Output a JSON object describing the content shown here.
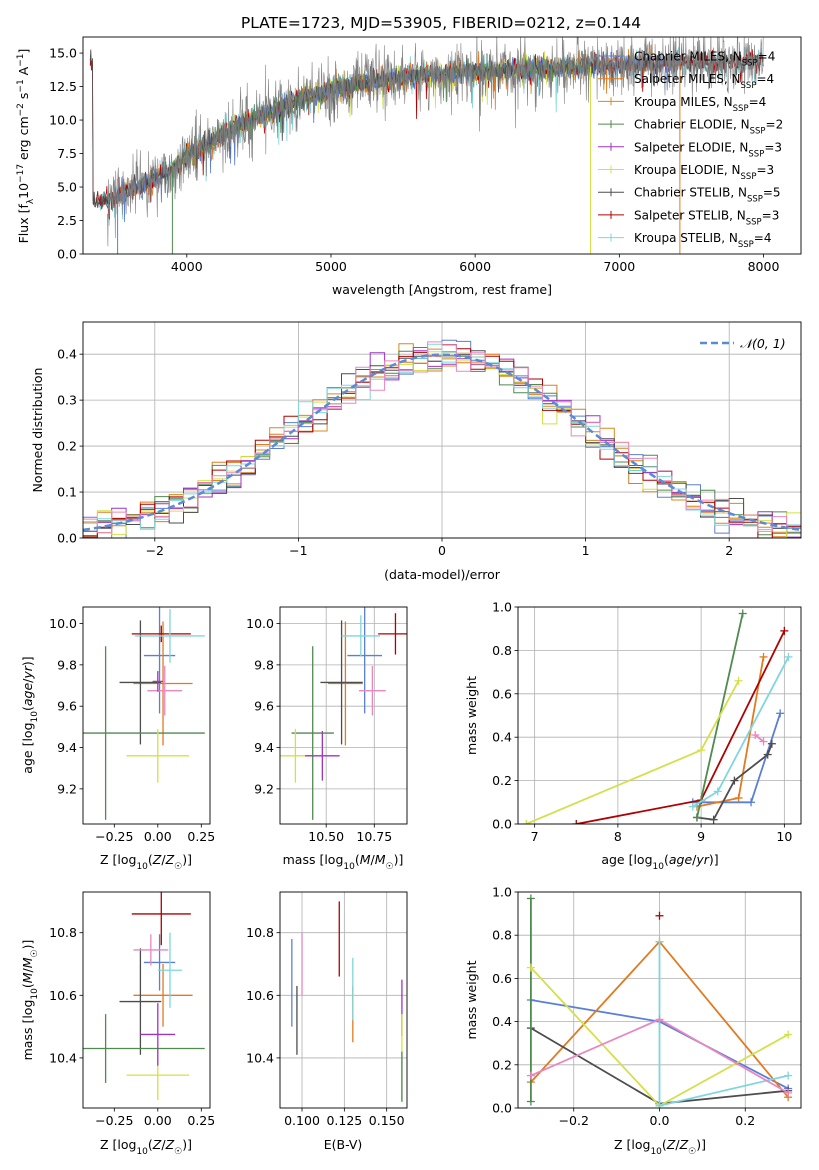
{
  "title": "PLATE=1723, MJD=53905, FIBERID=0212, z=0.144",
  "colors": {
    "Chabrier MILES": "#5b7fd6",
    "Salpeter MILES": "#e07b20",
    "Kroupa MILES": "#d88a1c",
    "Chabrier ELODIE": "#4f8a4f",
    "Salpeter ELODIE": "#a033c0",
    "Kroupa ELODIE": "#d4e04a",
    "Chabrier STELIB": "#4d4d4d",
    "Salpeter STELIB": "#b00000",
    "Kroupa STELIB": "#7fd6dc",
    "pink": "#e887c0",
    "data": "#808080"
  },
  "chart_data": [
    {
      "type": "line",
      "xlabel": "wavelength [Angstrom, rest frame]",
      "ylabel": "Flux [f$_\\lambda$10$^{-17}$ erg cm$^{-2}$ s$^{-1}$ A$^{-1}$]",
      "ylabel_parts": [
        "Flux [f",
        "λ",
        "10",
        "−17",
        " erg cm",
        "−2",
        " s",
        "−1",
        " A",
        "−1",
        "]"
      ],
      "xlim": [
        3280,
        8260
      ],
      "ylim": [
        0,
        16.2
      ],
      "xticks": [
        4000,
        5000,
        6000,
        7000,
        8000
      ],
      "yticks": [
        0.0,
        2.5,
        5.0,
        7.5,
        10.0,
        12.5,
        15.0
      ],
      "grid": false,
      "legend_position": "top-right",
      "legend": [
        {
          "label": "Chabrier MILES",
          "n": 4,
          "color": "#5b7fd6"
        },
        {
          "label": "Salpeter MILES",
          "n": 4,
          "color": "#e07b20"
        },
        {
          "label": "Kroupa MILES",
          "n": 4,
          "color": "#d88a1c"
        },
        {
          "label": "Chabrier ELODIE",
          "n": 2,
          "color": "#4f8a4f"
        },
        {
          "label": "Salpeter ELODIE",
          "n": 3,
          "color": "#a033c0"
        },
        {
          "label": "Kroupa ELODIE",
          "n": 3,
          "color": "#d4e04a"
        },
        {
          "label": "Chabrier STELIB",
          "n": 5,
          "color": "#4d4d4d"
        },
        {
          "label": "Salpeter STELIB",
          "n": 3,
          "color": "#b00000"
        },
        {
          "label": "Kroupa STELIB",
          "n": 4,
          "color": "#7fd6dc"
        }
      ],
      "n_label": "N",
      "n_sub": "SSP",
      "spectrum_envelope": {
        "x": [
          3350,
          3500,
          3700,
          3900,
          4000,
          4200,
          4500,
          4800,
          5000,
          5300,
          5600,
          6000,
          6400,
          6800,
          7200,
          7600,
          8000
        ],
        "y": [
          3.9,
          4.3,
          5.2,
          6.3,
          7.3,
          8.6,
          10.3,
          11.6,
          12.3,
          12.9,
          13.3,
          13.6,
          13.8,
          14.0,
          14.2,
          14.3,
          14.4
        ]
      }
    },
    {
      "type": "histogram",
      "xlabel": "(data-model)/error",
      "ylabel": "Normed distribution",
      "xlim": [
        -2.5,
        2.5
      ],
      "ylim": [
        0,
        0.47
      ],
      "xticks": [
        -2,
        -1,
        0,
        1,
        2
      ],
      "yticks": [
        0.0,
        0.1,
        0.2,
        0.3,
        0.4
      ],
      "grid": true,
      "legend": [
        {
          "label": "𝒩(0, 1)",
          "color": "#5b8ad6",
          "style": "dashed"
        }
      ],
      "legend_position": "top-right",
      "bin_width": 0.1,
      "series_colors": [
        "#5b7fd6",
        "#e07b20",
        "#d88a1c",
        "#4f8a4f",
        "#a033c0",
        "#d4e04a",
        "#4d4d4d",
        "#b00000",
        "#7fd6dc",
        "#e887c0"
      ]
    },
    {
      "type": "scatter",
      "panel": "age vs Z",
      "xlabel": "Z [log10(Z/Z☉)]",
      "ylabel": "age [log10(age/yr)]",
      "xlim": [
        -0.43,
        0.3
      ],
      "ylim": [
        9.03,
        10.08
      ],
      "xticks": [
        -0.25,
        0.0,
        0.25
      ],
      "yticks": [
        9.2,
        9.4,
        9.6,
        9.8,
        10.0
      ],
      "grid": false,
      "points": [
        {
          "x": 0.01,
          "y": 9.845,
          "xerr": 0.09,
          "yerr": 0.28,
          "color": "#5b7fd6"
        },
        {
          "x": 0.03,
          "y": 9.71,
          "xerr": 0.17,
          "yerr": 0.3,
          "color": "#e07b20"
        },
        {
          "x": 0.02,
          "y": 9.95,
          "xerr": 0.17,
          "yerr": 0.04,
          "color": "#b00000"
        },
        {
          "x": -0.1,
          "y": 9.715,
          "xerr": 0.12,
          "yerr": 0.3,
          "color": "#4d4d4d"
        },
        {
          "x": -0.3,
          "y": 9.47,
          "xerr": 0.57,
          "yerr": 0.42,
          "color": "#4f8a4f"
        },
        {
          "x": 0.0,
          "y": 9.36,
          "xerr": 0.18,
          "yerr": 0.13,
          "color": "#d4e04a"
        },
        {
          "x": 0.07,
          "y": 9.94,
          "xerr": 0.2,
          "yerr": 0.13,
          "color": "#7fd6dc"
        },
        {
          "x": 0.04,
          "y": 9.675,
          "xerr": 0.1,
          "yerr": 0.12,
          "color": "#e887c0"
        },
        {
          "x": 0.0,
          "y": 9.72,
          "xerr": 0.03,
          "yerr": 0.05,
          "color": "#a033c0"
        }
      ]
    },
    {
      "type": "scatter",
      "panel": "age vs mass",
      "xlabel": "mass [log10(M/M☉)]",
      "ylabel": "",
      "xlim": [
        10.26,
        10.92
      ],
      "ylim": [
        9.03,
        10.08
      ],
      "xticks": [
        10.25,
        10.5,
        10.75
      ],
      "yticks": [
        9.2,
        9.4,
        9.6,
        9.8,
        10.0
      ],
      "grid": true,
      "points": [
        {
          "x": 10.7,
          "y": 9.845,
          "xerr": 0.09,
          "yerr": 0.28,
          "color": "#5b7fd6"
        },
        {
          "x": 10.6,
          "y": 9.71,
          "xerr": 0.09,
          "yerr": 0.3,
          "color": "#e07b20"
        },
        {
          "x": 10.86,
          "y": 9.95,
          "xerr": 0.09,
          "yerr": 0.1,
          "color": "#b00000"
        },
        {
          "x": 10.58,
          "y": 9.715,
          "xerr": 0.11,
          "yerr": 0.3,
          "color": "#4d4d4d"
        },
        {
          "x": 10.43,
          "y": 9.47,
          "xerr": 0.11,
          "yerr": 0.42,
          "color": "#4f8a4f"
        },
        {
          "x": 10.34,
          "y": 9.36,
          "xerr": 0.09,
          "yerr": 0.13,
          "color": "#d4e04a"
        },
        {
          "x": 10.68,
          "y": 9.94,
          "xerr": 0.1,
          "yerr": 0.1,
          "color": "#7fd6dc"
        },
        {
          "x": 10.74,
          "y": 9.675,
          "xerr": 0.07,
          "yerr": 0.12,
          "color": "#e887c0"
        },
        {
          "x": 10.48,
          "y": 9.36,
          "xerr": 0.09,
          "yerr": 0.12,
          "color": "#a033c0"
        }
      ]
    },
    {
      "type": "line",
      "panel": "mass weight vs age",
      "xlabel": "age [log10(age/yr)]",
      "ylabel": "mass weight",
      "xlim": [
        6.8,
        10.2
      ],
      "ylim": [
        0,
        1.0
      ],
      "xticks": [
        7,
        8,
        9,
        10
      ],
      "yticks": [
        0.0,
        0.2,
        0.4,
        0.6,
        0.8,
        1.0
      ],
      "grid": true,
      "series": [
        {
          "color": "#5b7fd6",
          "points": [
            [
              8.9,
              0.1
            ],
            [
              9.6,
              0.1
            ],
            [
              9.95,
              0.51
            ]
          ]
        },
        {
          "color": "#e07b20",
          "points": [
            [
              8.95,
              0.08
            ],
            [
              9.45,
              0.12
            ],
            [
              9.75,
              0.77
            ]
          ]
        },
        {
          "color": "#b00000",
          "points": [
            [
              7.5,
              0.0
            ],
            [
              9.0,
              0.11
            ],
            [
              10.0,
              0.89
            ]
          ]
        },
        {
          "color": "#4d4d4d",
          "points": [
            [
              8.95,
              0.03
            ],
            [
              9.15,
              0.02
            ],
            [
              9.4,
              0.2
            ],
            [
              9.8,
              0.32
            ],
            [
              9.85,
              0.37
            ]
          ]
        },
        {
          "color": "#4f8a4f",
          "points": [
            [
              8.95,
              0.03
            ],
            [
              9.5,
              0.97
            ]
          ]
        },
        {
          "color": "#d4e04a",
          "points": [
            [
              6.9,
              0.0
            ],
            [
              9.0,
              0.34
            ],
            [
              9.45,
              0.66
            ]
          ]
        },
        {
          "color": "#7fd6dc",
          "points": [
            [
              8.9,
              0.08
            ],
            [
              9.2,
              0.15
            ],
            [
              10.05,
              0.77
            ]
          ]
        },
        {
          "color": "#e887c0",
          "points": [
            [
              9.65,
              0.41
            ],
            [
              9.75,
              0.38
            ]
          ]
        }
      ]
    },
    {
      "type": "scatter",
      "panel": "mass vs Z",
      "xlabel": "Z [log10(Z/Z☉)]",
      "ylabel": "mass [log10(M/M☉)]",
      "xlim": [
        -0.43,
        0.3
      ],
      "ylim": [
        10.24,
        10.93
      ],
      "xticks": [
        -0.25,
        0.0,
        0.25
      ],
      "yticks": [
        10.4,
        10.6,
        10.8
      ],
      "grid": false,
      "points": [
        {
          "x": 0.01,
          "y": 10.705,
          "xerr": 0.09,
          "yerr": 0.09,
          "color": "#5b7fd6"
        },
        {
          "x": 0.03,
          "y": 10.6,
          "xerr": 0.17,
          "yerr": 0.1,
          "color": "#e07b20"
        },
        {
          "x": 0.02,
          "y": 10.86,
          "xerr": 0.17,
          "yerr": 0.1,
          "color": "#b00000"
        },
        {
          "x": -0.1,
          "y": 10.58,
          "xerr": 0.12,
          "yerr": 0.17,
          "color": "#4d4d4d"
        },
        {
          "x": -0.3,
          "y": 10.43,
          "xerr": 0.57,
          "yerr": 0.11,
          "color": "#4f8a4f"
        },
        {
          "x": 0.0,
          "y": 10.345,
          "xerr": 0.18,
          "yerr": 0.08,
          "color": "#d4e04a"
        },
        {
          "x": 0.07,
          "y": 10.68,
          "xerr": 0.07,
          "yerr": 0.12,
          "color": "#7fd6dc"
        },
        {
          "x": -0.04,
          "y": 10.745,
          "xerr": 0.1,
          "yerr": 0.05,
          "color": "#e887c0"
        },
        {
          "x": 0.0,
          "y": 10.475,
          "xerr": 0.1,
          "yerr": 0.1,
          "color": "#a033c0"
        }
      ]
    },
    {
      "type": "scatter",
      "panel": "mass vs E(B-V)",
      "xlabel": "E(B-V)",
      "ylabel": "",
      "xlim": [
        0.087,
        0.162
      ],
      "ylim": [
        10.24,
        10.93
      ],
      "xticks": [
        0.1,
        0.125,
        0.15
      ],
      "yticks": [
        10.4,
        10.6,
        10.8
      ],
      "grid": true,
      "points": [
        {
          "x": 0.094,
          "y": 10.64,
          "yerr": 0.14,
          "color": "#5b7fd6"
        },
        {
          "x": 0.097,
          "y": 10.52,
          "yerr": 0.11,
          "color": "#4d4d4d"
        },
        {
          "x": 0.1,
          "y": 10.7,
          "yerr": 0.1,
          "color": "#e887c0"
        },
        {
          "x": 0.122,
          "y": 10.78,
          "yerr": 0.12,
          "color": "#b00000"
        },
        {
          "x": 0.13,
          "y": 10.54,
          "yerr": 0.09,
          "color": "#e07b20"
        },
        {
          "x": 0.13,
          "y": 10.62,
          "yerr": 0.1,
          "color": "#7fd6dc"
        },
        {
          "x": 0.159,
          "y": 10.56,
          "yerr": 0.09,
          "color": "#a033c0"
        },
        {
          "x": 0.159,
          "y": 10.4,
          "yerr": 0.14,
          "color": "#d4e04a"
        },
        {
          "x": 0.159,
          "y": 10.34,
          "yerr": 0.08,
          "color": "#4f8a4f"
        }
      ]
    },
    {
      "type": "line",
      "panel": "mass weight vs Z",
      "xlabel": "Z [log10(Z/Z☉)]",
      "ylabel": "mass weight",
      "xlim": [
        -0.33,
        0.33
      ],
      "ylim": [
        0,
        1.0
      ],
      "xticks": [
        -0.2,
        0.0,
        0.2
      ],
      "yticks": [
        0.0,
        0.2,
        0.4,
        0.6,
        0.8,
        1.0
      ],
      "grid": true,
      "series": [
        {
          "color": "#5b7fd6",
          "points": [
            [
              -0.3,
              0.5
            ],
            [
              0.0,
              0.4
            ],
            [
              0.3,
              0.09
            ]
          ]
        },
        {
          "color": "#e07b20",
          "points": [
            [
              -0.3,
              0.12
            ],
            [
              0.0,
              0.77
            ],
            [
              0.3,
              0.05
            ]
          ]
        },
        {
          "color": "#b00000",
          "points": [
            [
              0.0,
              0.89
            ]
          ]
        },
        {
          "color": "#4d4d4d",
          "points": [
            [
              -0.3,
              0.37
            ],
            [
              0.0,
              0.02
            ],
            [
              0.3,
              0.08
            ]
          ]
        },
        {
          "color": "#4f8a4f",
          "points": [
            [
              -0.3,
              0.03
            ],
            [
              -0.3,
              0.97
            ]
          ]
        },
        {
          "color": "#d4e04a",
          "points": [
            [
              -0.3,
              0.65
            ],
            [
              0.0,
              0.01
            ],
            [
              0.3,
              0.34
            ]
          ]
        },
        {
          "color": "#7fd6dc",
          "points": [
            [
              0.0,
              0.77
            ],
            [
              0.0,
              0.01
            ],
            [
              0.3,
              0.15
            ]
          ]
        },
        {
          "color": "#e887c0",
          "points": [
            [
              -0.3,
              0.15
            ],
            [
              0.0,
              0.41
            ],
            [
              0.3,
              0.07
            ]
          ]
        }
      ]
    }
  ]
}
